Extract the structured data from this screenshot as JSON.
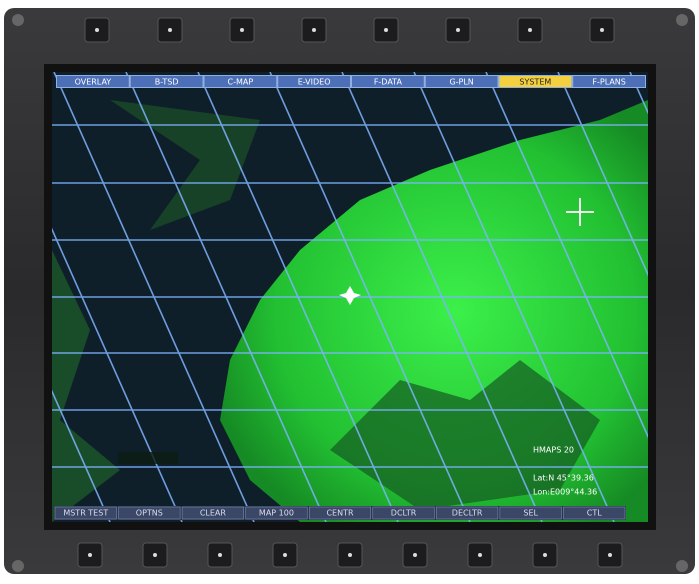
{
  "top_menu": [
    "OVERLAY",
    "B-TSD",
    "C-MAP",
    "E-VIDEO",
    "F-DATA",
    "G-PLN",
    "SYSTEM",
    "F-PLANS"
  ],
  "active_top": "SYSTEM",
  "bottom_menu": [
    "MSTR TEST",
    "OPTNS",
    "CLEAR",
    "MAP 100",
    "CENTR",
    "DCLTR",
    "DECLTR",
    "SEL",
    "CTL"
  ],
  "readout": {
    "mode": "HMAPS 20",
    "lat": "Lat:N 45°39.36",
    "lon": "Lon:E009°44.36"
  }
}
